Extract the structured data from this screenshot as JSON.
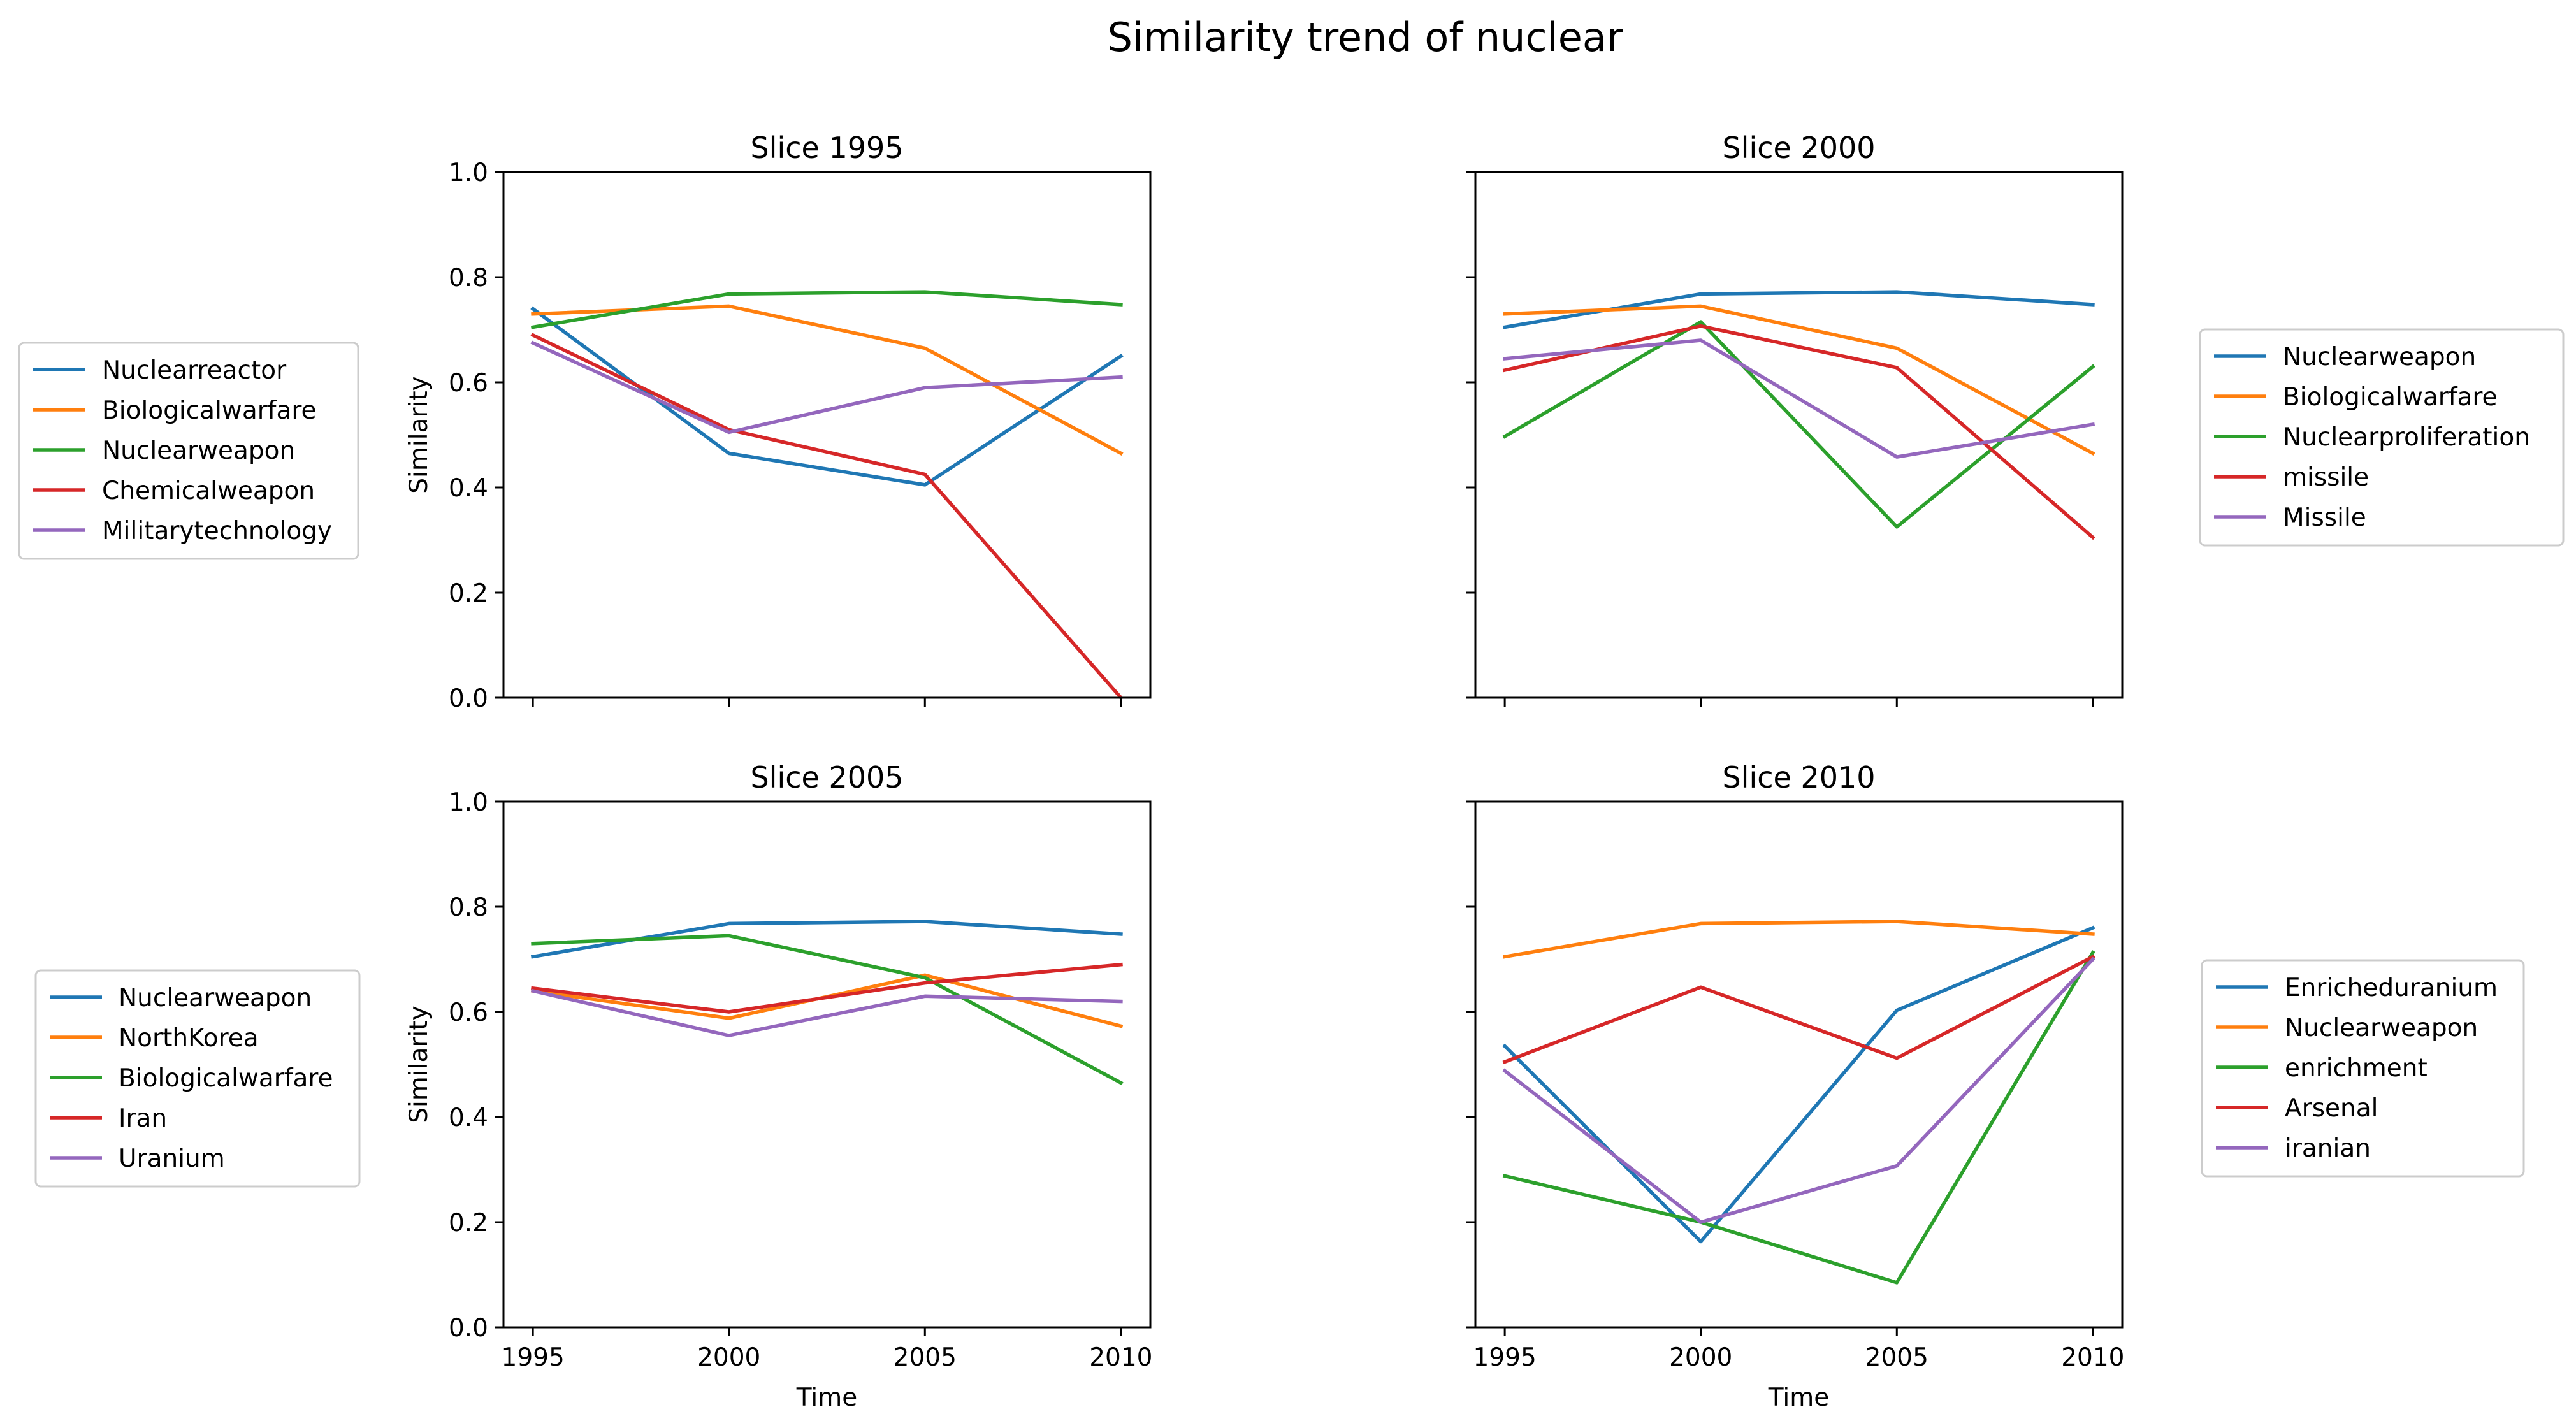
{
  "figure": {
    "title": "Similarity trend of nuclear"
  },
  "chart_data": [
    {
      "type": "line",
      "title": "Slice 1995",
      "xlabel": "",
      "ylabel": "Similarity",
      "x": [
        1995,
        2000,
        2005,
        2010
      ],
      "x_tick_labels_shown": false,
      "y_tick_labels_shown": true,
      "xticks": [
        "1995",
        "2000",
        "2005",
        "2010"
      ],
      "yticks": [
        "0.0",
        "0.2",
        "0.4",
        "0.6",
        "0.8",
        "1.0"
      ],
      "ylim": [
        0,
        1
      ],
      "grid": false,
      "legend_position": "left",
      "series": [
        {
          "name": "Nuclearreactor",
          "color": "#1f77b4",
          "values": [
            0.74,
            0.465,
            0.405,
            0.65
          ]
        },
        {
          "name": "Biologicalwarfare",
          "color": "#ff7f0e",
          "values": [
            0.73,
            0.745,
            0.665,
            0.465
          ]
        },
        {
          "name": "Nuclearweapon",
          "color": "#2ca02c",
          "values": [
            0.705,
            0.768,
            0.772,
            0.748
          ]
        },
        {
          "name": "Chemicalweapon",
          "color": "#d62728",
          "values": [
            0.69,
            0.51,
            0.425,
            0.0
          ]
        },
        {
          "name": "Militarytechnology",
          "color": "#9467bd",
          "values": [
            0.675,
            0.505,
            0.59,
            0.61
          ]
        }
      ]
    },
    {
      "type": "line",
      "title": "Slice 2000",
      "xlabel": "",
      "ylabel": "",
      "x": [
        1995,
        2000,
        2005,
        2010
      ],
      "x_tick_labels_shown": false,
      "y_tick_labels_shown": false,
      "xticks": [
        "1995",
        "2000",
        "2005",
        "2010"
      ],
      "yticks": [
        "0.0",
        "0.2",
        "0.4",
        "0.6",
        "0.8",
        "1.0"
      ],
      "ylim": [
        0,
        1
      ],
      "grid": false,
      "legend_position": "right",
      "series": [
        {
          "name": "Nuclearweapon",
          "color": "#1f77b4",
          "values": [
            0.705,
            0.768,
            0.772,
            0.748
          ]
        },
        {
          "name": "Biologicalwarfare",
          "color": "#ff7f0e",
          "values": [
            0.73,
            0.745,
            0.665,
            0.465
          ]
        },
        {
          "name": "Nuclearproliferation",
          "color": "#2ca02c",
          "values": [
            0.497,
            0.715,
            0.325,
            0.63
          ]
        },
        {
          "name": "missile",
          "color": "#d62728",
          "values": [
            0.623,
            0.707,
            0.628,
            0.305
          ]
        },
        {
          "name": "Missile",
          "color": "#9467bd",
          "values": [
            0.645,
            0.68,
            0.458,
            0.52
          ]
        }
      ]
    },
    {
      "type": "line",
      "title": "Slice 2005",
      "xlabel": "Time",
      "ylabel": "Similarity",
      "x": [
        1995,
        2000,
        2005,
        2010
      ],
      "x_tick_labels_shown": true,
      "y_tick_labels_shown": true,
      "xticks": [
        "1995",
        "2000",
        "2005",
        "2010"
      ],
      "yticks": [
        "0.0",
        "0.2",
        "0.4",
        "0.6",
        "0.8",
        "1.0"
      ],
      "ylim": [
        0,
        1
      ],
      "grid": false,
      "legend_position": "left",
      "series": [
        {
          "name": "Nuclearweapon",
          "color": "#1f77b4",
          "values": [
            0.705,
            0.768,
            0.772,
            0.748
          ]
        },
        {
          "name": "NorthKorea",
          "color": "#ff7f0e",
          "values": [
            0.64,
            0.588,
            0.67,
            0.573
          ]
        },
        {
          "name": "Biologicalwarfare",
          "color": "#2ca02c",
          "values": [
            0.73,
            0.745,
            0.665,
            0.465
          ]
        },
        {
          "name": "Iran",
          "color": "#d62728",
          "values": [
            0.645,
            0.6,
            0.655,
            0.69
          ]
        },
        {
          "name": "Uranium",
          "color": "#9467bd",
          "values": [
            0.64,
            0.555,
            0.63,
            0.62
          ]
        }
      ]
    },
    {
      "type": "line",
      "title": "Slice 2010",
      "xlabel": "Time",
      "ylabel": "",
      "x": [
        1995,
        2000,
        2005,
        2010
      ],
      "x_tick_labels_shown": true,
      "y_tick_labels_shown": false,
      "xticks": [
        "1995",
        "2000",
        "2005",
        "2010"
      ],
      "yticks": [
        "0.0",
        "0.2",
        "0.4",
        "0.6",
        "0.8",
        "1.0"
      ],
      "ylim": [
        0,
        1
      ],
      "grid": false,
      "legend_position": "right",
      "series": [
        {
          "name": "Enricheduranium",
          "color": "#1f77b4",
          "values": [
            0.535,
            0.163,
            0.603,
            0.76
          ]
        },
        {
          "name": "Nuclearweapon",
          "color": "#ff7f0e",
          "values": [
            0.705,
            0.768,
            0.772,
            0.748
          ]
        },
        {
          "name": "enrichment",
          "color": "#2ca02c",
          "values": [
            0.288,
            0.2,
            0.085,
            0.713
          ]
        },
        {
          "name": "Arsenal",
          "color": "#d62728",
          "values": [
            0.505,
            0.647,
            0.512,
            0.705
          ]
        },
        {
          "name": "iranian",
          "color": "#9467bd",
          "values": [
            0.488,
            0.2,
            0.307,
            0.7
          ]
        }
      ]
    }
  ]
}
